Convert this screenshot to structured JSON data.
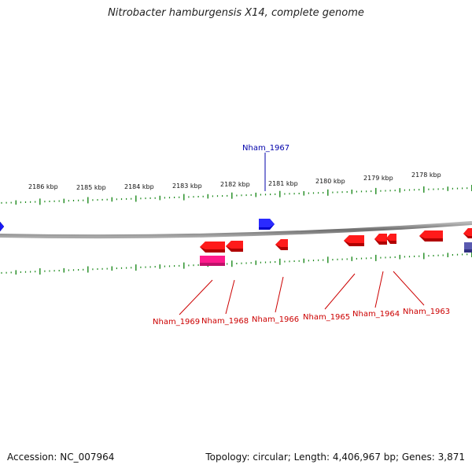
{
  "title": "Nitrobacter hamburgensis X14, complete genome",
  "footer": {
    "accession": "Accession: NC_007964",
    "summary": "Topology: circular; Length: 4,406,967 bp; Genes: 3,871"
  },
  "ruler": {
    "labels": [
      "2186 kbp",
      "2185 kbp",
      "2184 kbp",
      "2183 kbp",
      "2182 kbp",
      "2181 kbp",
      "2180 kbp",
      "2179 kbp",
      "2178 kbp"
    ]
  },
  "genes": [
    {
      "label": "Nham_1967",
      "strand": "forward",
      "color": "#1010cc"
    },
    {
      "label": "Nham_1969",
      "strand": "reverse",
      "color": "#cc1111"
    },
    {
      "label": "Nham_1968",
      "strand": "reverse",
      "color": "#cc1111"
    },
    {
      "label": "Nham_1966",
      "strand": "reverse",
      "color": "#cc1111"
    },
    {
      "label": "Nham_1965",
      "strand": "reverse",
      "color": "#cc1111"
    },
    {
      "label": "Nham_1964",
      "strand": "reverse",
      "color": "#cc1111"
    },
    {
      "label": "Nham_1963",
      "strand": "reverse",
      "color": "#cc1111"
    }
  ],
  "colors": {
    "backbone": "#8a8a8a",
    "ticks": "#1e8a1e",
    "forward_gene": "#1a1aff",
    "reverse_gene": "#ff1010",
    "rna_gene": "#ff1493",
    "other_gene": "#5050a0"
  }
}
